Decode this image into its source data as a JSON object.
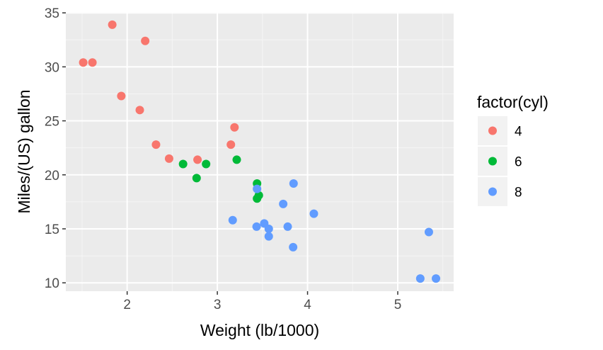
{
  "chart_data": {
    "type": "scatter",
    "title": "",
    "xlabel": "Weight (lb/1000)",
    "ylabel": "Miles/(US) gallon",
    "xlim": [
      1.32,
      5.62
    ],
    "ylim": [
      9.225,
      35.075
    ],
    "x_ticks": [
      2,
      3,
      4,
      5
    ],
    "y_ticks": [
      10,
      15,
      20,
      25,
      30,
      35
    ],
    "grid": true,
    "legend": {
      "title": "factor(cyl)",
      "position": "right",
      "entries": [
        "4",
        "6",
        "8"
      ]
    },
    "series": [
      {
        "name": "4",
        "color": "#F8766D",
        "x": [
          2.32,
          3.19,
          3.15,
          2.2,
          1.615,
          1.835,
          2.465,
          1.935,
          2.14,
          1.513,
          2.78
        ],
        "y": [
          22.8,
          24.4,
          22.8,
          32.4,
          30.4,
          33.9,
          21.5,
          27.3,
          26.0,
          30.4,
          21.4
        ]
      },
      {
        "name": "6",
        "color": "#00BA38",
        "x": [
          2.62,
          2.875,
          3.215,
          3.46,
          3.44,
          3.44,
          2.77
        ],
        "y": [
          21.0,
          21.0,
          21.4,
          18.1,
          19.2,
          17.8,
          19.7
        ]
      },
      {
        "name": "8",
        "color": "#619CFF",
        "x": [
          3.44,
          3.57,
          4.07,
          3.73,
          3.78,
          5.25,
          5.424,
          5.345,
          3.52,
          3.435,
          3.84,
          3.845,
          3.17,
          3.57
        ],
        "y": [
          18.7,
          14.3,
          16.4,
          17.3,
          15.2,
          10.4,
          10.4,
          14.7,
          15.5,
          15.2,
          13.3,
          19.2,
          15.8,
          15.0
        ]
      }
    ]
  }
}
